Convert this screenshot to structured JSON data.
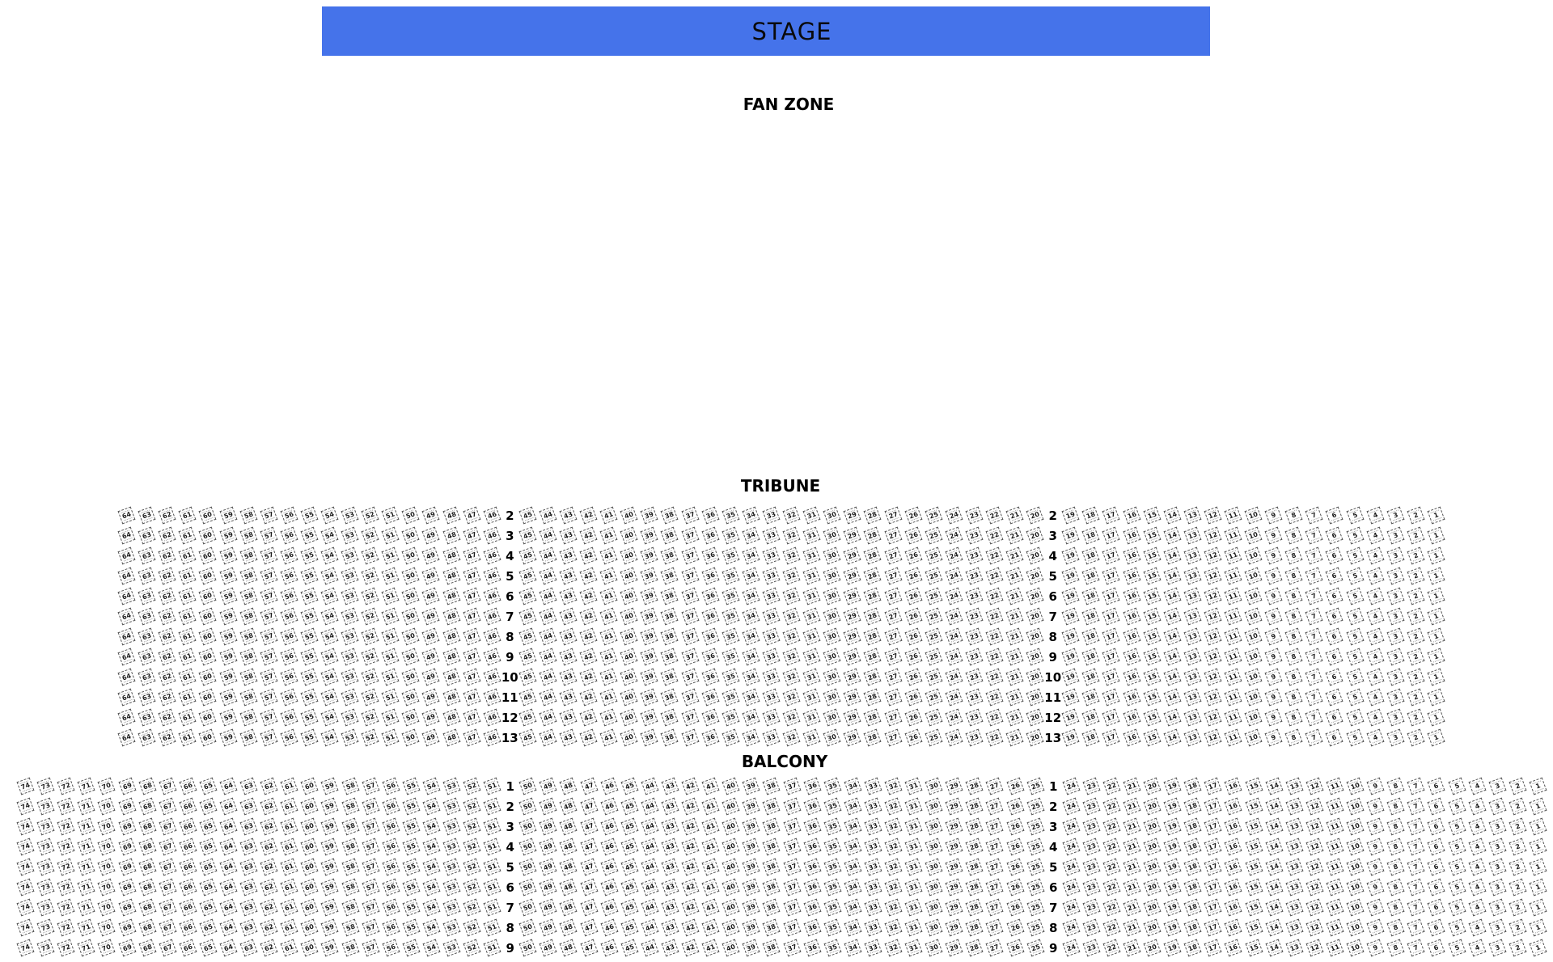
{
  "stage": {
    "label": "STAGE",
    "bg_color": "#4573EA"
  },
  "fan_zone": {
    "label": "FAN ZONE"
  },
  "sections": [
    {
      "id": "tribune",
      "label": "TRIBUNE",
      "rows": [
        2,
        3,
        4,
        5,
        6,
        7,
        8,
        9,
        10,
        11,
        12,
        13
      ],
      "blocks": [
        {
          "from": 64,
          "to": 46
        },
        {
          "from": 45,
          "to": 20
        },
        {
          "from": 19,
          "to": 1
        }
      ]
    },
    {
      "id": "balcony",
      "label": "BALCONY",
      "rows": [
        1,
        2,
        3,
        4,
        5,
        6,
        7,
        8,
        9
      ],
      "blocks": [
        {
          "from": 74,
          "to": 51
        },
        {
          "from": 50,
          "to": 25
        },
        {
          "from": 24,
          "to": 1
        }
      ]
    }
  ]
}
